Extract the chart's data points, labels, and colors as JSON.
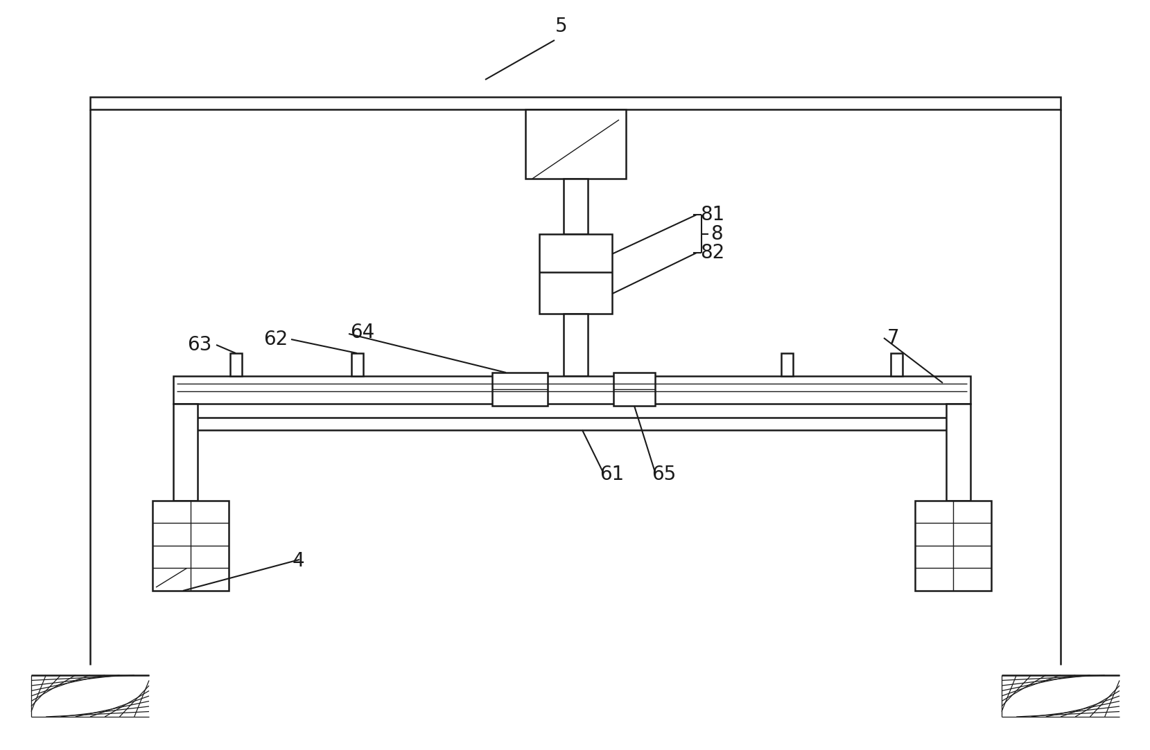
{
  "bg_color": "#ffffff",
  "line_color": "#1a1a1a",
  "lw_main": 1.8,
  "lw_thin": 1.0,
  "fig_width": 16.59,
  "fig_height": 10.83
}
